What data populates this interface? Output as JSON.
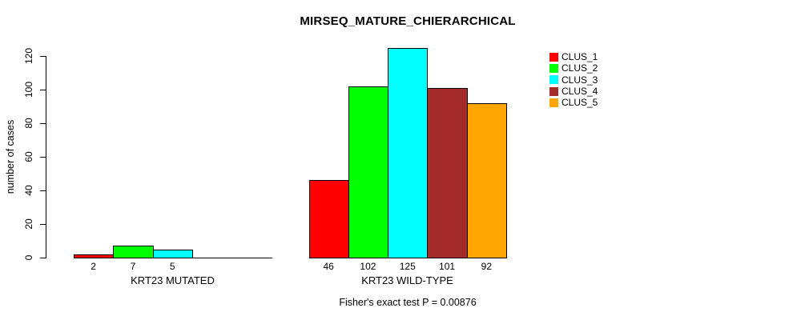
{
  "chart_data": {
    "type": "bar",
    "title": "MIRSEQ_MATURE_CHIERARCHICAL",
    "ylabel": "number of cases",
    "xlabel": "",
    "ylim": [
      0,
      120
    ],
    "yticks": [
      0,
      20,
      40,
      60,
      80,
      100,
      120
    ],
    "grid": false,
    "legend_position": "right",
    "categories": [
      "KRT23 MUTATED",
      "KRT23 WILD-TYPE"
    ],
    "series": [
      {
        "name": "CLUS_1",
        "color": "#ff0000",
        "values": [
          2,
          46
        ]
      },
      {
        "name": "CLUS_2",
        "color": "#00ff00",
        "values": [
          7,
          102
        ]
      },
      {
        "name": "CLUS_3",
        "color": "#00ffff",
        "values": [
          5,
          125
        ]
      },
      {
        "name": "CLUS_4",
        "color": "#a52a2a",
        "values": [
          0,
          101
        ]
      },
      {
        "name": "CLUS_5",
        "color": "#ffa500",
        "values": [
          0,
          92
        ]
      }
    ],
    "bar_value_labels_visible": [
      "2",
      "7",
      "5",
      "46",
      "102",
      "125",
      "101",
      "92"
    ],
    "footer": "Fisher's exact test P = 0.00876"
  }
}
